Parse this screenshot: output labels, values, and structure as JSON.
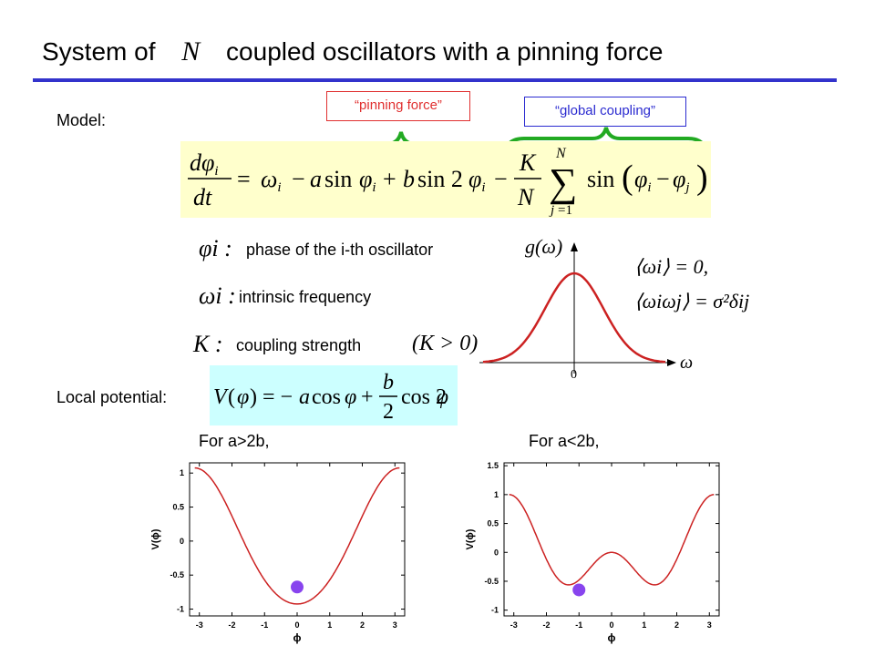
{
  "title": {
    "before": "System of",
    "symbol": "N",
    "after": "coupled oscillators with a pinning force"
  },
  "model_label": "Model:",
  "annotations": {
    "pinning": "“pinning force”",
    "global": "“global coupling”"
  },
  "definitions": [
    {
      "symbol": "φi :",
      "text": "phase of the i-th oscillator"
    },
    {
      "symbol": "ωi :",
      "text": "intrinsic frequency"
    },
    {
      "symbol": "K :",
      "text": "coupling strength",
      "condition": "(K > 0)"
    }
  ],
  "local_potential_label": "Local potential:",
  "distribution": {
    "ylabel": "g(ω)",
    "xlabel": "ω",
    "zero": "0",
    "moment1": "⟨ωi⟩ = 0,",
    "moment2": "⟨ωiωj⟩ = σ²δij"
  },
  "colors": {
    "accent_blue": "#3333cc",
    "red": "#e03030",
    "blue_box": "#2b2bd0",
    "curve": "#cc2222",
    "ball": "#8844ee",
    "green": "#22aa22",
    "eq_bg": "#ffffcc",
    "pot_bg": "#ccffff"
  },
  "chart_data": [
    {
      "type": "line",
      "caption": "For a>2b,",
      "function": "V(φ) = -a cos φ + (b/2) cos 2φ",
      "params": {
        "a": 1.0,
        "b": 0.15
      },
      "xlim": [
        -3.3,
        3.3
      ],
      "ylim": [
        -1.1,
        1.15
      ],
      "xticks": [
        -3,
        -2,
        -1,
        0,
        1,
        2,
        3
      ],
      "yticks": [
        -1,
        -0.5,
        0,
        0.5,
        1
      ],
      "xlabel": "ϕ",
      "ylabel": "V(ϕ)",
      "ball": {
        "x": 0.0,
        "y": -0.675
      }
    },
    {
      "type": "line",
      "caption": "For a<2b,",
      "function": "V(φ) = -a cos φ + (b/2) cos 2φ",
      "params": {
        "a": 0.5,
        "b": 1.0
      },
      "xlim": [
        -3.3,
        3.3
      ],
      "ylim": [
        -1.1,
        1.55
      ],
      "xticks": [
        -3,
        -2,
        -1,
        0,
        1,
        2,
        3
      ],
      "yticks": [
        -1,
        -0.5,
        0,
        0.5,
        1,
        1.5
      ],
      "xlabel": "ϕ",
      "ylabel": "V(ϕ)",
      "ball": {
        "x": -1.0,
        "y": -0.65
      }
    }
  ]
}
